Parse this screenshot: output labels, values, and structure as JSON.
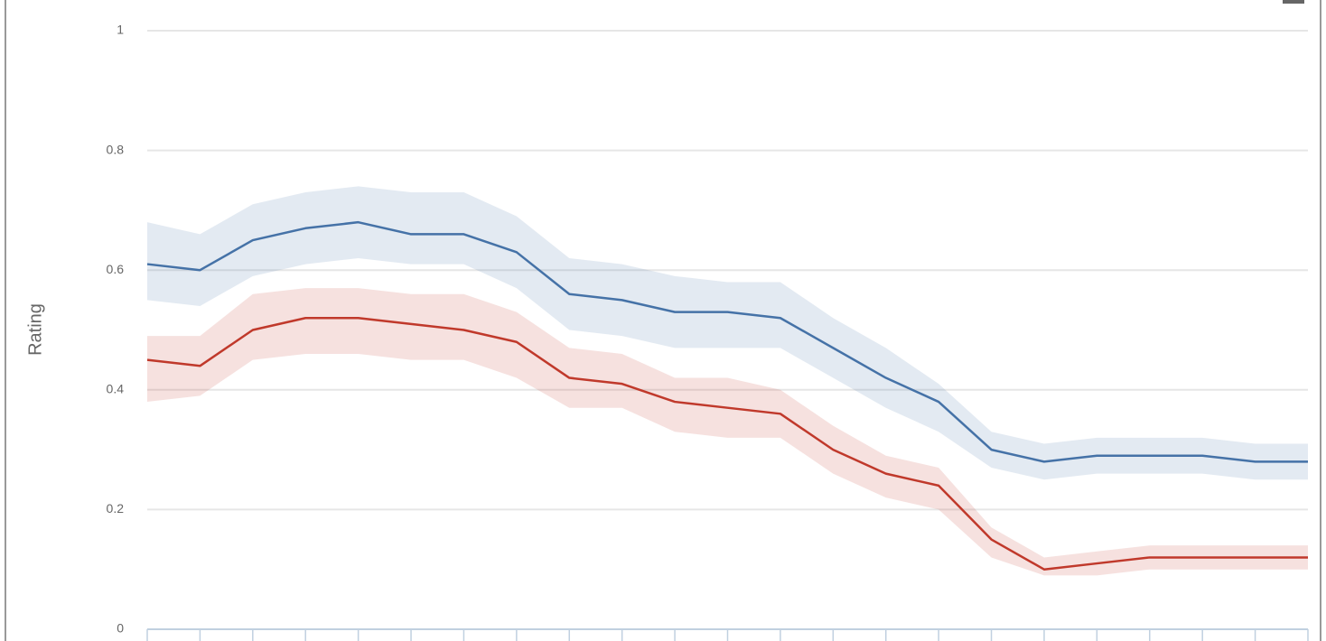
{
  "chart_data": {
    "type": "line",
    "y_label": "Rating",
    "categories": [
      null,
      null,
      null,
      null,
      null,
      null,
      null,
      null,
      null,
      null,
      null,
      null,
      null,
      null,
      null,
      null,
      null,
      null,
      null,
      null,
      null,
      null,
      null
    ],
    "ylim": [
      0,
      1
    ],
    "yticks": [
      0,
      0.2,
      0.4,
      0.6,
      0.8,
      1
    ],
    "grid": true,
    "series": [
      {
        "color": "#4572a7",
        "values": [
          0.61,
          0.6,
          0.65,
          0.67,
          0.68,
          0.66,
          0.66,
          0.63,
          0.56,
          0.55,
          0.53,
          0.53,
          0.52,
          0.47,
          0.42,
          0.38,
          0.3,
          0.28,
          0.29,
          0.29,
          0.29,
          0.28,
          0.28
        ],
        "high": [
          0.68,
          0.66,
          0.71,
          0.73,
          0.74,
          0.73,
          0.73,
          0.69,
          0.62,
          0.61,
          0.59,
          0.58,
          0.58,
          0.52,
          0.47,
          0.41,
          0.33,
          0.31,
          0.32,
          0.32,
          0.32,
          0.31,
          0.31
        ],
        "low": [
          0.55,
          0.54,
          0.59,
          0.61,
          0.62,
          0.61,
          0.61,
          0.57,
          0.5,
          0.49,
          0.47,
          0.47,
          0.47,
          0.42,
          0.37,
          0.33,
          0.27,
          0.25,
          0.26,
          0.26,
          0.26,
          0.25,
          0.25
        ]
      },
      {
        "color": "#c0392b",
        "values": [
          0.45,
          0.44,
          0.5,
          0.52,
          0.52,
          0.51,
          0.5,
          0.48,
          0.42,
          0.41,
          0.38,
          0.37,
          0.36,
          0.3,
          0.26,
          0.24,
          0.15,
          0.1,
          0.11,
          0.12,
          0.12,
          0.12,
          0.12
        ],
        "high": [
          0.49,
          0.49,
          0.56,
          0.57,
          0.57,
          0.56,
          0.56,
          0.53,
          0.47,
          0.46,
          0.42,
          0.42,
          0.4,
          0.34,
          0.29,
          0.27,
          0.17,
          0.12,
          0.13,
          0.14,
          0.14,
          0.14,
          0.14
        ],
        "low": [
          0.38,
          0.39,
          0.45,
          0.46,
          0.46,
          0.45,
          0.45,
          0.42,
          0.37,
          0.37,
          0.33,
          0.32,
          0.32,
          0.26,
          0.22,
          0.2,
          0.12,
          0.09,
          0.09,
          0.1,
          0.1,
          0.1,
          0.1
        ]
      }
    ]
  }
}
